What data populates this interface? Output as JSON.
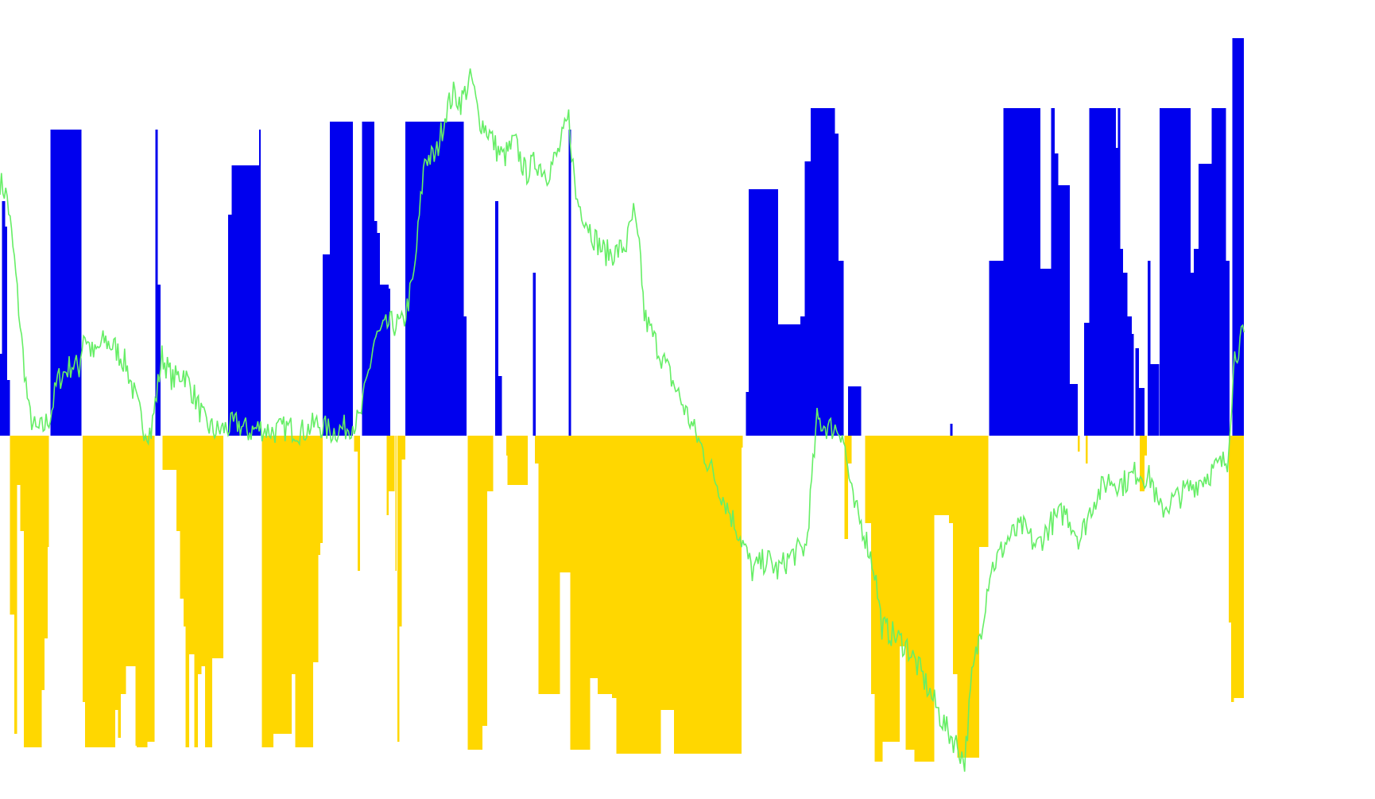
{
  "chart_data": {
    "type": "bar",
    "title": "",
    "xlabel": "",
    "ylabel": "",
    "grid": false,
    "legend": "none",
    "ylim": [
      -430,
      500
    ],
    "colors": {
      "positive_bars": "#0000ee",
      "negative_bars": "#ffd700",
      "line": "#66ee66",
      "background": "#ffffff"
    },
    "series": [
      {
        "kind": "bars-positive",
        "color": "#0000ee",
        "segments": [
          [
            0,
            3,
            103
          ],
          [
            3,
            7,
            295
          ],
          [
            7,
            10,
            263
          ],
          [
            10,
            14,
            70
          ],
          [
            70,
            113,
            385
          ],
          [
            216,
            219,
            385
          ],
          [
            219,
            223,
            190
          ],
          [
            317,
            322,
            278
          ],
          [
            322,
            327,
            340
          ],
          [
            327,
            360,
            340
          ],
          [
            360,
            362,
            385
          ],
          [
            448,
            458,
            228
          ],
          [
            458,
            490,
            395
          ],
          [
            503,
            520,
            395
          ],
          [
            520,
            524,
            270
          ],
          [
            524,
            528,
            255
          ],
          [
            528,
            538,
            190
          ],
          [
            538,
            540,
            190
          ],
          [
            540,
            542,
            185
          ],
          [
            563,
            644,
            395
          ],
          [
            644,
            648,
            150
          ],
          [
            688,
            692,
            295
          ],
          [
            692,
            697,
            75
          ],
          [
            740,
            744,
            205
          ],
          [
            790,
            793,
            385
          ],
          [
            1036,
            1040,
            55
          ],
          [
            1040,
            1081,
            310
          ],
          [
            1081,
            1112,
            140
          ],
          [
            1112,
            1118,
            150
          ],
          [
            1118,
            1122,
            345
          ],
          [
            1122,
            1126,
            345
          ],
          [
            1126,
            1160,
            412
          ],
          [
            1160,
            1165,
            380
          ],
          [
            1165,
            1172,
            220
          ],
          [
            1178,
            1183,
            62
          ],
          [
            1183,
            1196,
            62
          ],
          [
            1320,
            1323,
            15
          ],
          [
            1374,
            1394,
            220
          ],
          [
            1394,
            1412,
            412
          ],
          [
            1412,
            1445,
            412
          ],
          [
            1445,
            1451,
            210
          ],
          [
            1451,
            1460,
            210
          ],
          [
            1460,
            1465,
            412
          ],
          [
            1465,
            1470,
            355
          ],
          [
            1470,
            1477,
            315
          ],
          [
            1477,
            1486,
            315
          ],
          [
            1486,
            1491,
            65
          ],
          [
            1491,
            1497,
            65
          ],
          [
            1506,
            1513,
            142
          ],
          [
            1513,
            1522,
            412
          ],
          [
            1522,
            1550,
            412
          ],
          [
            1550,
            1553,
            362
          ],
          [
            1553,
            1556,
            412
          ],
          [
            1556,
            1560,
            235
          ],
          [
            1560,
            1566,
            205
          ],
          [
            1566,
            1572,
            150
          ],
          [
            1572,
            1575,
            128
          ],
          [
            1577,
            1582,
            110
          ],
          [
            1582,
            1590,
            60
          ],
          [
            1594,
            1598,
            220
          ],
          [
            1598,
            1610,
            90
          ],
          [
            1611,
            1654,
            412
          ],
          [
            1654,
            1658,
            205
          ],
          [
            1658,
            1665,
            235
          ],
          [
            1665,
            1683,
            342
          ],
          [
            1683,
            1703,
            412
          ],
          [
            1703,
            1708,
            220
          ],
          [
            1712,
            1728,
            500
          ]
        ]
      },
      {
        "kind": "bars-negative",
        "color": "#ffd700",
        "segments": [
          [
            14,
            20,
            -225
          ],
          [
            20,
            24,
            -375
          ],
          [
            24,
            28,
            -62
          ],
          [
            28,
            33,
            -120
          ],
          [
            33,
            58,
            -392
          ],
          [
            58,
            62,
            -320
          ],
          [
            62,
            66,
            -255
          ],
          [
            66,
            68,
            -140
          ],
          [
            115,
            118,
            -335
          ],
          [
            118,
            160,
            -392
          ],
          [
            160,
            164,
            -345
          ],
          [
            164,
            168,
            -380
          ],
          [
            168,
            175,
            -325
          ],
          [
            175,
            188,
            -290
          ],
          [
            188,
            190,
            -390
          ],
          [
            190,
            205,
            -392
          ],
          [
            205,
            215,
            -385
          ],
          [
            226,
            245,
            -43
          ],
          [
            245,
            250,
            -120
          ],
          [
            250,
            255,
            -205
          ],
          [
            255,
            258,
            -240
          ],
          [
            258,
            263,
            -392
          ],
          [
            263,
            270,
            -275
          ],
          [
            270,
            275,
            -392
          ],
          [
            275,
            280,
            -300
          ],
          [
            280,
            285,
            -290
          ],
          [
            285,
            295,
            -392
          ],
          [
            295,
            302,
            -280
          ],
          [
            302,
            310,
            -280
          ],
          [
            364,
            370,
            -392
          ],
          [
            370,
            380,
            -392
          ],
          [
            380,
            405,
            -375
          ],
          [
            405,
            410,
            -300
          ],
          [
            410,
            420,
            -392
          ],
          [
            420,
            435,
            -392
          ],
          [
            435,
            442,
            -285
          ],
          [
            442,
            445,
            -150
          ],
          [
            445,
            448,
            -135
          ],
          [
            492,
            497,
            -20
          ],
          [
            497,
            500,
            -170
          ],
          [
            537,
            540,
            -100
          ],
          [
            540,
            548,
            -70
          ],
          [
            549,
            551,
            -170
          ],
          [
            552,
            555,
            -385
          ],
          [
            555,
            558,
            -240
          ],
          [
            558,
            563,
            -30
          ],
          [
            650,
            670,
            -395
          ],
          [
            670,
            677,
            -365
          ],
          [
            677,
            680,
            -70
          ],
          [
            680,
            685,
            -70
          ],
          [
            703,
            705,
            -25
          ],
          [
            705,
            710,
            -62
          ],
          [
            710,
            733,
            -62
          ],
          [
            743,
            748,
            -35
          ],
          [
            748,
            778,
            -325
          ],
          [
            778,
            790,
            -172
          ],
          [
            790,
            792,
            -172
          ],
          [
            792,
            795,
            -395
          ],
          [
            795,
            820,
            -395
          ],
          [
            820,
            830,
            -305
          ],
          [
            830,
            850,
            -325
          ],
          [
            850,
            856,
            -330
          ],
          [
            856,
            860,
            -400
          ],
          [
            860,
            918,
            -400
          ],
          [
            918,
            936,
            -345
          ],
          [
            936,
            1030,
            -400
          ],
          [
            1030,
            1032,
            -15
          ],
          [
            1173,
            1178,
            -130
          ],
          [
            1178,
            1183,
            -35
          ],
          [
            1202,
            1210,
            -110
          ],
          [
            1210,
            1215,
            -325
          ],
          [
            1215,
            1226,
            -410
          ],
          [
            1226,
            1250,
            -385
          ],
          [
            1250,
            1258,
            -265
          ],
          [
            1258,
            1270,
            -395
          ],
          [
            1270,
            1281,
            -410
          ],
          [
            1281,
            1298,
            -410
          ],
          [
            1298,
            1310,
            -100
          ],
          [
            1310,
            1318,
            -100
          ],
          [
            1318,
            1324,
            -110
          ],
          [
            1324,
            1330,
            -300
          ],
          [
            1330,
            1360,
            -405
          ],
          [
            1360,
            1373,
            -140
          ],
          [
            1497,
            1500,
            -20
          ],
          [
            1508,
            1511,
            -35
          ],
          [
            1583,
            1590,
            -70
          ],
          [
            1590,
            1593,
            -25
          ],
          [
            1707,
            1710,
            -235
          ],
          [
            1710,
            1714,
            -335
          ],
          [
            1714,
            1728,
            -330
          ]
        ]
      },
      {
        "kind": "line",
        "color": "#66ee66",
        "x": [
          0,
          10,
          20,
          30,
          40,
          50,
          60,
          70,
          80,
          90,
          100,
          110,
          116,
          130,
          145,
          160,
          175,
          190,
          200,
          210,
          225,
          240,
          255,
          270,
          285,
          300,
          315,
          330,
          345,
          360,
          380,
          400,
          420,
          440,
          460,
          480,
          500,
          520,
          540,
          552,
          560,
          575,
          590,
          605,
          620,
          630,
          640,
          655,
          665,
          680,
          690,
          700,
          715,
          730,
          745,
          760,
          775,
          790,
          800,
          810,
          825,
          840,
          855,
          870,
          880,
          890,
          895,
          1030,
          1045,
          1065,
          1080,
          1100,
          1120,
          1135,
          1150,
          1160,
          1170,
          1185,
          1200,
          1215,
          1225,
          1240,
          1260,
          1280,
          1300,
          1315,
          1330,
          1340,
          1350,
          1365,
          1375,
          1385,
          1400,
          1420,
          1440,
          1460,
          1480,
          1500,
          1520,
          1540,
          1560,
          1580,
          1600,
          1610,
          1705,
          1715,
          1728
        ],
        "values": [
          320,
          300,
          220,
          120,
          30,
          5,
          10,
          25,
          70,
          80,
          90,
          85,
          130,
          100,
          120,
          110,
          90,
          40,
          10,
          5,
          100,
          70,
          80,
          50,
          15,
          5,
          10,
          15,
          5,
          10,
          5,
          10,
          5,
          15,
          5,
          10,
          20,
          120,
          140,
          140,
          140,
          200,
          350,
          350,
          410,
          430,
          420,
          450,
          400,
          380,
          360,
          350,
          370,
          330,
          345,
          330,
          355,
          400,
          300,
          280,
          250,
          230,
          230,
          240,
          280,
          220,
          150,
          -130,
          -170,
          -155,
          -170,
          -150,
          -140,
          20,
          10,
          10,
          5,
          -85,
          -120,
          -170,
          -240,
          -250,
          -265,
          -300,
          -340,
          -370,
          -390,
          -410,
          -305,
          -230,
          -170,
          -155,
          -130,
          -115,
          -140,
          -110,
          -95,
          -130,
          -80,
          -55,
          -60,
          -45,
          -55,
          -95,
          -30,
          100,
          130
        ]
      }
    ]
  }
}
